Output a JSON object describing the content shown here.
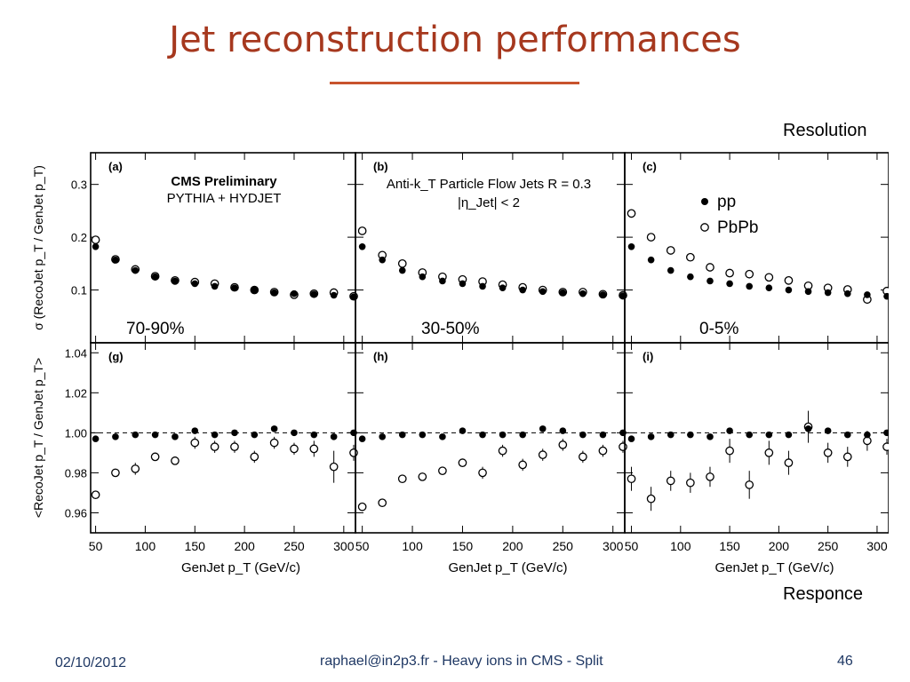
{
  "slide": {
    "title": "Jet reconstruction performances",
    "label_top": "Resolution",
    "label_bottom": "Responce",
    "footer_date": "02/10/2012",
    "footer_center": "raphael@in2p3.fr - Heavy ions in CMS - Split",
    "footer_page": "46"
  },
  "colors": {
    "title": "#a6381e",
    "rule": "#c8532d",
    "footer": "#1f3864"
  },
  "chart_data": {
    "type": "scatter",
    "x_label": "GenJet p_T (GeV/c)",
    "x_ticks": [
      50,
      100,
      150,
      200,
      250,
      300
    ],
    "xlim": [
      45,
      310
    ],
    "x": [
      50,
      70,
      90,
      110,
      130,
      150,
      170,
      190,
      210,
      230,
      250,
      270,
      290,
      310
    ],
    "legend": {
      "pp": "pp",
      "pbpb": "PbPb",
      "placement": "top-right panel (c)"
    },
    "rows": [
      {
        "ylabel": "σ (RecoJet p_T / GenJet p_T)",
        "ylim": [
          0.0,
          0.36
        ],
        "y_ticks": [
          0.1,
          0.2,
          0.3
        ],
        "y_tick_labels": [
          "0.1",
          "0.2",
          "0.3"
        ],
        "reference_line": null
      },
      {
        "ylabel": "<RecoJet p_T / GenJet p_T>",
        "ylim": [
          0.95,
          1.045
        ],
        "y_ticks": [
          0.96,
          0.98,
          1.0,
          1.02,
          1.04
        ],
        "y_tick_labels": [
          "0.96",
          "0.98",
          "1.00",
          "1.02",
          "1.04"
        ],
        "reference_line": 1.0
      }
    ],
    "panels": [
      {
        "row": 0,
        "col": 0,
        "tag": "(a)",
        "centrality": "70-90%",
        "text_lines": [
          "CMS Preliminary",
          "PYTHIA + HYDJET"
        ],
        "pp": [
          0.182,
          0.157,
          0.137,
          0.125,
          0.117,
          0.112,
          0.107,
          0.104,
          0.1,
          0.095,
          0.093,
          0.092,
          0.09,
          0.087
        ],
        "pbpb": [
          0.195,
          0.158,
          0.139,
          0.126,
          0.118,
          0.115,
          0.112,
          0.105,
          0.1,
          0.096,
          0.091,
          0.093,
          0.095,
          0.088
        ],
        "pbpb_err": [
          0,
          0,
          0,
          0,
          0,
          0,
          0,
          0,
          0,
          0,
          0,
          0,
          0,
          0
        ]
      },
      {
        "row": 0,
        "col": 1,
        "tag": "(b)",
        "centrality": "30-50%",
        "text_lines": [
          "Anti-k_T Particle Flow Jets R = 0.3",
          "|η_Jet| < 2"
        ],
        "pp": [
          0.182,
          0.157,
          0.137,
          0.125,
          0.117,
          0.112,
          0.107,
          0.104,
          0.1,
          0.097,
          0.095,
          0.093,
          0.091,
          0.089
        ],
        "pbpb": [
          0.212,
          0.166,
          0.15,
          0.133,
          0.125,
          0.12,
          0.116,
          0.11,
          0.105,
          0.1,
          0.096,
          0.096,
          0.092,
          0.09
        ],
        "pbpb_err": [
          0,
          0,
          0,
          0,
          0,
          0,
          0,
          0,
          0,
          0,
          0,
          0,
          0,
          0
        ]
      },
      {
        "row": 0,
        "col": 2,
        "tag": "(c)",
        "centrality": "0-5%",
        "text_lines": [],
        "pp": [
          0.182,
          0.157,
          0.137,
          0.125,
          0.117,
          0.112,
          0.107,
          0.104,
          0.1,
          0.097,
          0.095,
          0.093,
          0.091,
          0.088
        ],
        "pbpb": [
          0.245,
          0.2,
          0.175,
          0.162,
          0.143,
          0.132,
          0.13,
          0.124,
          0.118,
          0.108,
          0.104,
          0.101,
          0.082,
          0.098
        ],
        "pbpb_err": [
          0,
          0,
          0,
          0,
          0,
          0,
          0,
          0,
          0,
          0,
          0,
          0,
          0,
          0
        ]
      },
      {
        "row": 1,
        "col": 0,
        "tag": "(g)",
        "centrality": "",
        "text_lines": [],
        "pp": [
          0.997,
          0.998,
          0.999,
          0.999,
          0.998,
          1.001,
          0.999,
          1.0,
          0.999,
          1.002,
          1.0,
          0.999,
          0.998,
          1.0
        ],
        "pbpb": [
          0.969,
          0.98,
          0.982,
          0.988,
          0.986,
          0.995,
          0.993,
          0.993,
          0.988,
          0.995,
          0.992,
          0.992,
          0.983,
          0.99
        ],
        "pbpb_err": [
          0.002,
          0.002,
          0.003,
          0.002,
          0.002,
          0.003,
          0.003,
          0.003,
          0.003,
          0.003,
          0.003,
          0.004,
          0.008,
          0.004
        ]
      },
      {
        "row": 1,
        "col": 1,
        "tag": "(h)",
        "centrality": "",
        "text_lines": [],
        "pp": [
          0.997,
          0.998,
          0.999,
          0.999,
          0.998,
          1.001,
          0.999,
          0.999,
          0.999,
          1.002,
          1.001,
          0.999,
          0.999,
          1.0
        ],
        "pbpb": [
          0.963,
          0.965,
          0.977,
          0.978,
          0.981,
          0.985,
          0.98,
          0.991,
          0.984,
          0.989,
          0.994,
          0.988,
          0.991,
          0.993
        ],
        "pbpb_err": [
          0.002,
          0.002,
          0.002,
          0.002,
          0.002,
          0.002,
          0.003,
          0.003,
          0.003,
          0.003,
          0.003,
          0.003,
          0.003,
          0.003
        ]
      },
      {
        "row": 1,
        "col": 2,
        "tag": "(i)",
        "centrality": "",
        "text_lines": [],
        "pp": [
          0.997,
          0.998,
          0.999,
          0.999,
          0.998,
          1.001,
          0.999,
          0.999,
          0.999,
          1.002,
          1.001,
          0.999,
          0.999,
          1.0
        ],
        "pbpb": [
          0.977,
          0.967,
          0.976,
          0.975,
          0.978,
          0.991,
          0.974,
          0.99,
          0.985,
          1.003,
          0.99,
          0.988,
          0.996,
          0.993
        ],
        "pbpb_err": [
          0.006,
          0.006,
          0.005,
          0.005,
          0.005,
          0.006,
          0.007,
          0.006,
          0.006,
          0.008,
          0.005,
          0.005,
          0.005,
          0.004
        ]
      }
    ]
  }
}
